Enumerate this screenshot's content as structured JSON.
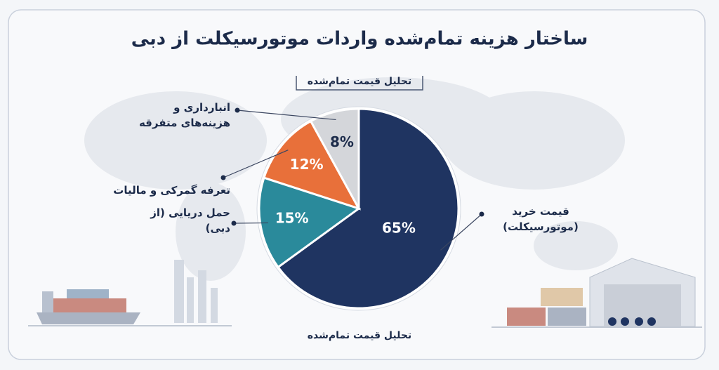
{
  "chart_data": {
    "type": "pie",
    "title": "ساختار هزینه تمام‌شده واردات موتورسیکلت از دبی",
    "subtitle": "تحلیل قیمت تمام‌شده",
    "caption": "تحلیل قیمت تمام‌شده",
    "categories": [
      "قیمت خرید (موتورسیکلت)",
      "حمل دریایی (از دبی)",
      "تعرفه گمرکی و مالیات",
      "انبارداری و هزینه‌های متفرقه"
    ],
    "values": [
      65,
      15,
      12,
      8
    ],
    "value_labels": [
      "65%",
      "15%",
      "12%",
      "8%"
    ],
    "colors": [
      "#1f3461",
      "#2a8a9b",
      "#e8703a",
      "#d4d6da"
    ]
  }
}
